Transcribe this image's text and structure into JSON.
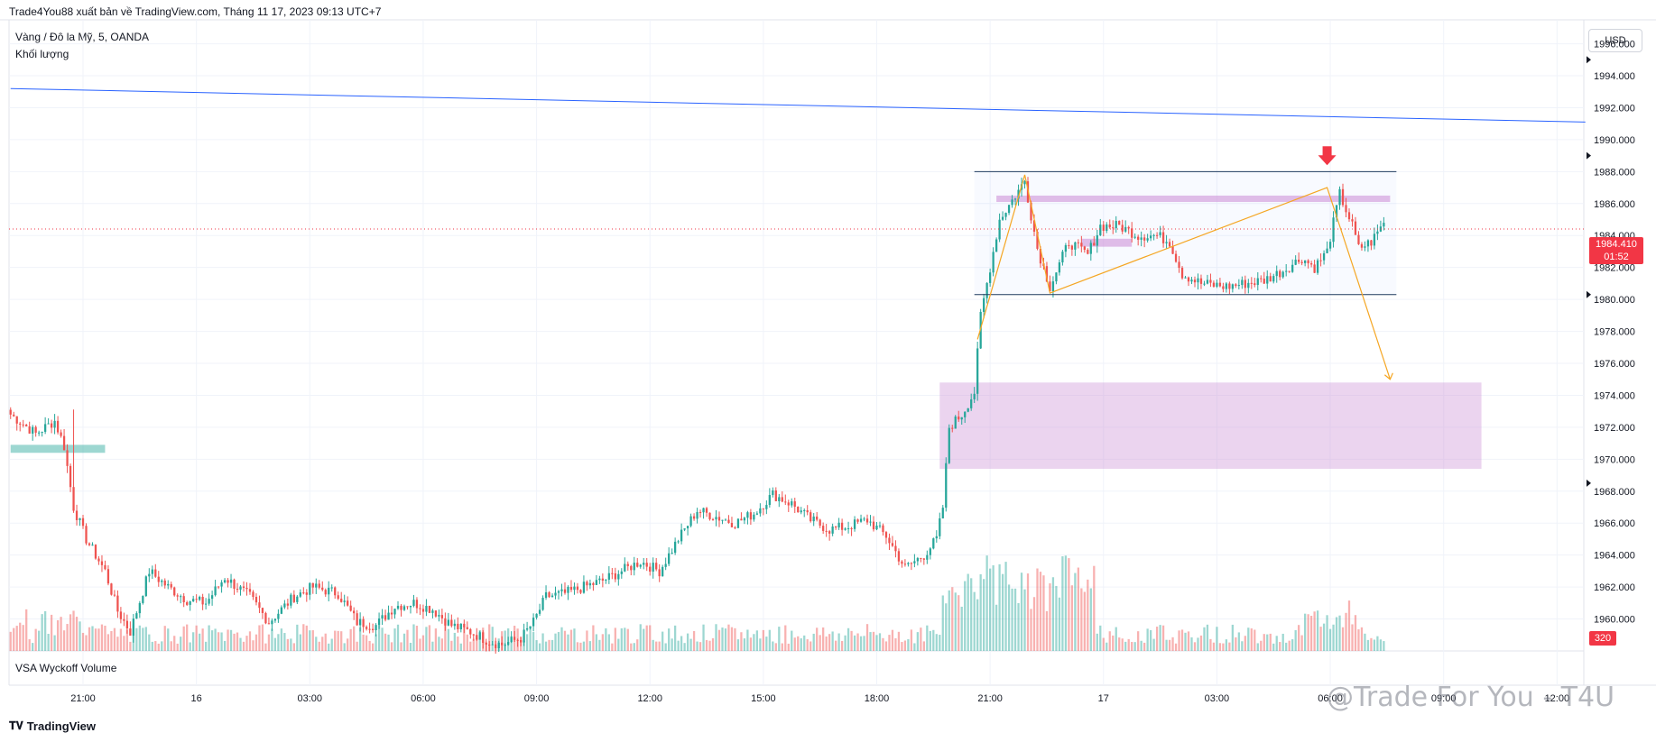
{
  "header": {
    "published_by": "Trade4You88 xuất bản về TradingView.com, Tháng 11 17, 2023 09:13 UTC+7"
  },
  "symbol": {
    "info": "Vàng / Đô la Mỹ, 5, OANDA",
    "volume_label": "Khối lượng"
  },
  "indicator": {
    "name": "VSA Wyckoff Volume"
  },
  "toolbar": {
    "currency": "USD"
  },
  "price_badge": {
    "price": "1984.410",
    "countdown": "01:52",
    "volume": "320"
  },
  "footer": {
    "logo_text": "TradingView",
    "watermark": "@Trade For You - T4U"
  },
  "colors": {
    "bull": "#26a69a",
    "bear": "#ef5350",
    "trendline": "#2962ff",
    "zone": "#e1bee7",
    "arrow": "#f23645",
    "path": "#f5a623"
  },
  "chart_data": {
    "type": "candlestick",
    "title": "Vàng / Đô la Mỹ, 5, OANDA",
    "ylim": [
      1958,
      1997.5
    ],
    "y_ticks": [
      {
        "value": 1960,
        "label": "1960.000"
      },
      {
        "value": 1962,
        "label": "1962.000"
      },
      {
        "value": 1964,
        "label": "1964.000"
      },
      {
        "value": 1966,
        "label": "1966.000"
      },
      {
        "value": 1968,
        "label": "1968.000"
      },
      {
        "value": 1970,
        "label": "1970.000"
      },
      {
        "value": 1972,
        "label": "1972.000"
      },
      {
        "value": 1974,
        "label": "1974.000"
      },
      {
        "value": 1976,
        "label": "1976.000"
      },
      {
        "value": 1978,
        "label": "1978.000"
      },
      {
        "value": 1980,
        "label": "1980.000"
      },
      {
        "value": 1982,
        "label": "1982.000"
      },
      {
        "value": 1984,
        "label": "1984.000"
      },
      {
        "value": 1986,
        "label": "1986.000"
      },
      {
        "value": 1988,
        "label": "1988.000"
      },
      {
        "value": 1990,
        "label": "1990.000"
      },
      {
        "value": 1992,
        "label": "1992.000"
      },
      {
        "value": 1994,
        "label": "1994.000"
      },
      {
        "value": 1996,
        "label": "1996.000"
      }
    ],
    "x_ticks": [
      {
        "index": 23,
        "label": "21:00"
      },
      {
        "index": 59,
        "label": "16"
      },
      {
        "index": 95,
        "label": "03:00"
      },
      {
        "index": 131,
        "label": "06:00"
      },
      {
        "index": 167,
        "label": "09:00"
      },
      {
        "index": 203,
        "label": "12:00"
      },
      {
        "index": 239,
        "label": "15:00"
      },
      {
        "index": 275,
        "label": "18:00"
      },
      {
        "index": 311,
        "label": "21:00"
      },
      {
        "index": 347,
        "label": "17"
      },
      {
        "index": 383,
        "label": "03:00"
      },
      {
        "index": 419,
        "label": "06:00"
      },
      {
        "index": 455,
        "label": "09:00"
      },
      {
        "index": 491,
        "label": "12:00"
      }
    ],
    "n_bars": 500,
    "close_anchors": [
      [
        0,
        1972.8
      ],
      [
        8,
        1971.6
      ],
      [
        14,
        1972.4
      ],
      [
        17,
        1970.8
      ],
      [
        20,
        1967.0
      ],
      [
        24,
        1965.0
      ],
      [
        30,
        1963.0
      ],
      [
        34,
        1960.5
      ],
      [
        38,
        1959.2
      ],
      [
        44,
        1963.0
      ],
      [
        50,
        1962.0
      ],
      [
        56,
        1961.2
      ],
      [
        62,
        1961.0
      ],
      [
        68,
        1962.6
      ],
      [
        76,
        1961.4
      ],
      [
        82,
        1959.8
      ],
      [
        90,
        1961.4
      ],
      [
        96,
        1962.0
      ],
      [
        104,
        1961.6
      ],
      [
        110,
        1959.8
      ],
      [
        116,
        1959.6
      ],
      [
        122,
        1960.8
      ],
      [
        128,
        1961.0
      ],
      [
        134,
        1960.6
      ],
      [
        140,
        1959.6
      ],
      [
        146,
        1959.2
      ],
      [
        152,
        1958.6
      ],
      [
        156,
        1958.4
      ],
      [
        162,
        1958.8
      ],
      [
        166,
        1959.8
      ],
      [
        170,
        1961.4
      ],
      [
        176,
        1961.6
      ],
      [
        182,
        1962.0
      ],
      [
        188,
        1962.4
      ],
      [
        194,
        1963.0
      ],
      [
        200,
        1963.6
      ],
      [
        206,
        1963.0
      ],
      [
        212,
        1965.0
      ],
      [
        218,
        1966.8
      ],
      [
        224,
        1966.4
      ],
      [
        230,
        1966.0
      ],
      [
        236,
        1966.6
      ],
      [
        242,
        1967.8
      ],
      [
        248,
        1967.2
      ],
      [
        254,
        1966.2
      ],
      [
        260,
        1965.6
      ],
      [
        266,
        1965.8
      ],
      [
        272,
        1966.2
      ],
      [
        278,
        1965.2
      ],
      [
        284,
        1963.2
      ],
      [
        290,
        1964.0
      ],
      [
        294,
        1965.0
      ],
      [
        296,
        1967.0
      ],
      [
        298,
        1972.0
      ],
      [
        302,
        1972.8
      ],
      [
        306,
        1974.2
      ],
      [
        308,
        1979.0
      ],
      [
        314,
        1985.0
      ],
      [
        318,
        1986.2
      ],
      [
        322,
        1987.4
      ],
      [
        326,
        1983.2
      ],
      [
        330,
        1980.8
      ],
      [
        336,
        1983.6
      ],
      [
        342,
        1982.8
      ],
      [
        346,
        1984.6
      ],
      [
        352,
        1984.6
      ],
      [
        358,
        1984.0
      ],
      [
        364,
        1984.0
      ],
      [
        368,
        1983.6
      ],
      [
        372,
        1981.6
      ],
      [
        378,
        1981.0
      ],
      [
        386,
        1980.8
      ],
      [
        392,
        1981.0
      ],
      [
        398,
        1981.2
      ],
      [
        404,
        1981.8
      ],
      [
        410,
        1982.6
      ],
      [
        414,
        1982.0
      ],
      [
        418,
        1983.0
      ],
      [
        422,
        1986.6
      ],
      [
        426,
        1984.6
      ],
      [
        428,
        1983.2
      ],
      [
        432,
        1983.6
      ],
      [
        436,
        1984.8
      ]
    ],
    "volumes_max": 180,
    "last_price": 1984.41,
    "annotations": {
      "trendline": {
        "from": [
          0,
          1993.2
        ],
        "to": [
          500,
          1991.1
        ]
      },
      "range_box": {
        "x0": 306,
        "x1": 440,
        "top": 1988.0,
        "bottom": 1980.3
      },
      "supply_zone": {
        "x0": 313,
        "x1": 438,
        "top": 1986.5,
        "bottom": 1986.1
      },
      "small_zone": {
        "x0": 340,
        "x1": 356,
        "top": 1983.8,
        "bottom": 1983.3
      },
      "demand_zone": {
        "x0": 295,
        "x1": 467,
        "top": 1974.8,
        "bottom": 1969.4
      },
      "left_zone": {
        "x0": 0,
        "x1": 30,
        "top": 1970.9,
        "bottom": 1970.4
      },
      "path": [
        [
          307,
          1977.5
        ],
        [
          322,
          1987.8
        ],
        [
          330,
          1980.4
        ],
        [
          418,
          1987.0
        ],
        [
          438,
          1975.0
        ]
      ],
      "down_arrow": {
        "index": 418,
        "price": 1988.4
      }
    }
  }
}
